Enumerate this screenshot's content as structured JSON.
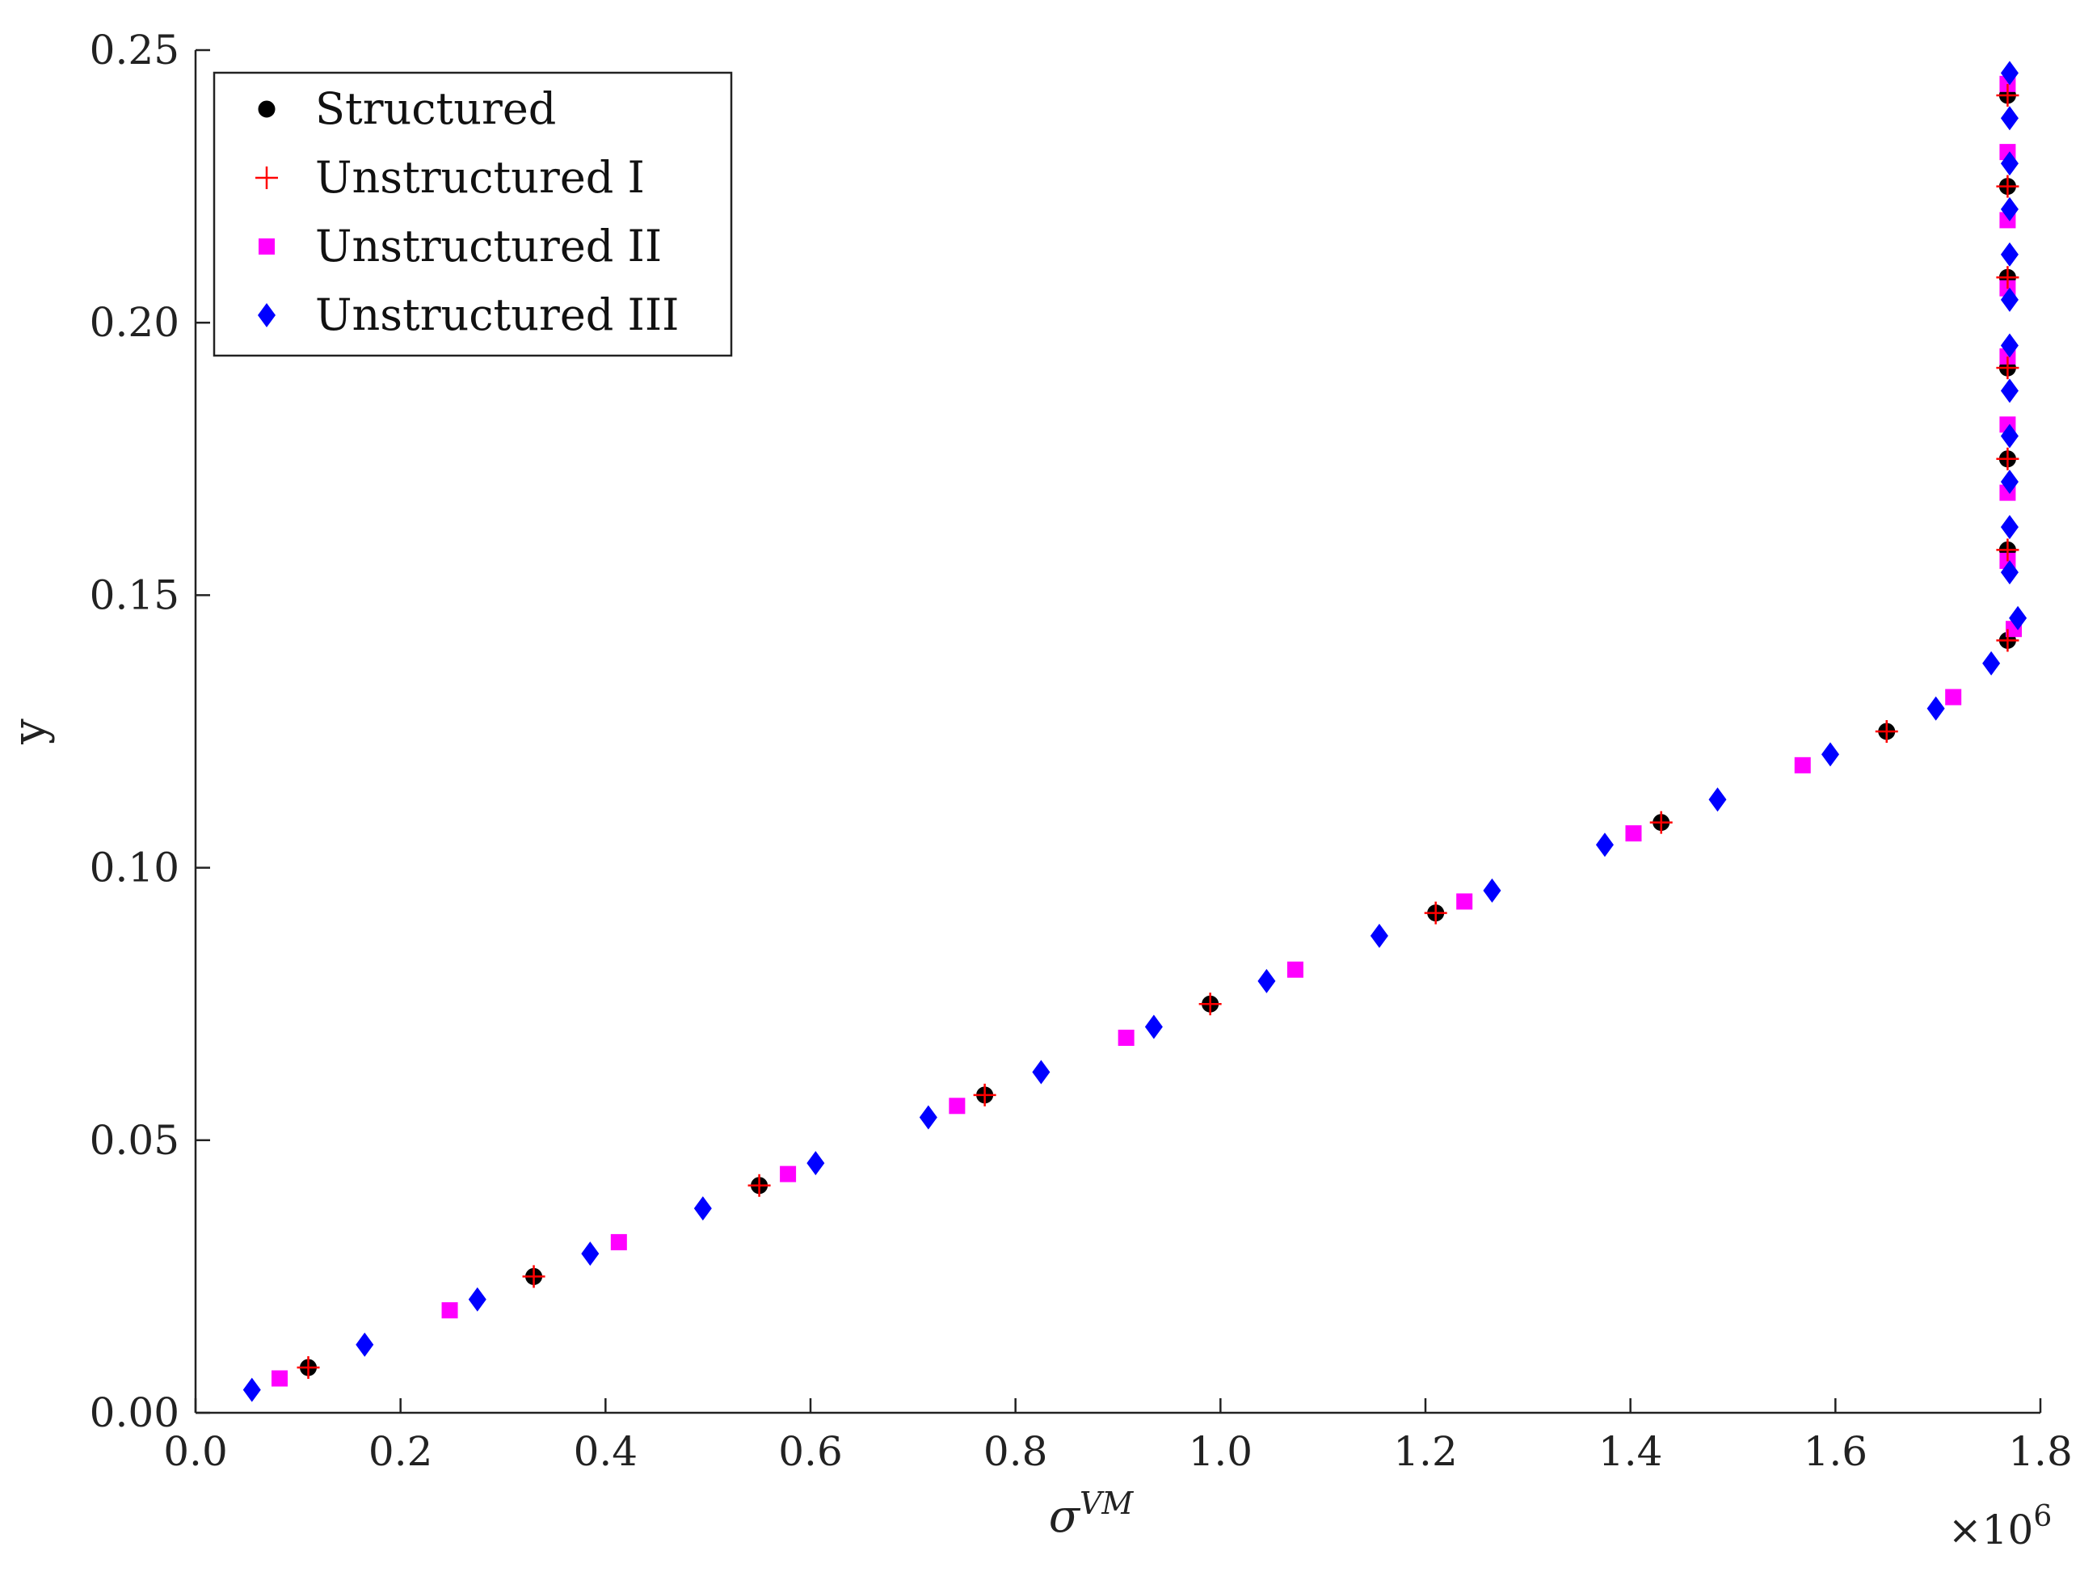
{
  "chart_data": {
    "type": "scatter",
    "xlabel": "σ",
    "xlabel_sup": "VM",
    "ylabel": "y",
    "x_multiplier_base": "×10",
    "x_multiplier_exp": "6",
    "xlim": [
      0.0,
      1.8
    ],
    "ylim": [
      0.0,
      0.25
    ],
    "xticks": [
      "0.0",
      "0.2",
      "0.4",
      "0.6",
      "0.8",
      "1.0",
      "1.2",
      "1.4",
      "1.6",
      "1.8"
    ],
    "yticks": [
      "0.00",
      "0.05",
      "0.10",
      "0.15",
      "0.20",
      "0.25"
    ],
    "grid": false,
    "legend_position": "top-left",
    "series": [
      {
        "name": "Structured",
        "marker": "circle",
        "color": "#000000",
        "points": [
          [
            0.11,
            0.0083
          ],
          [
            0.33,
            0.025
          ],
          [
            0.55,
            0.0417
          ],
          [
            0.77,
            0.0583
          ],
          [
            0.99,
            0.075
          ],
          [
            1.21,
            0.0917
          ],
          [
            1.43,
            0.1083
          ],
          [
            1.65,
            0.125
          ],
          [
            1.768,
            0.1417
          ],
          [
            1.768,
            0.1583
          ],
          [
            1.768,
            0.175
          ],
          [
            1.768,
            0.1917
          ],
          [
            1.768,
            0.2083
          ],
          [
            1.768,
            0.225
          ],
          [
            1.768,
            0.2417
          ]
        ]
      },
      {
        "name": "Unstructured I",
        "marker": "plus",
        "color": "#ff0000",
        "points": [
          [
            0.11,
            0.0083
          ],
          [
            0.33,
            0.025
          ],
          [
            0.55,
            0.0417
          ],
          [
            0.77,
            0.0583
          ],
          [
            0.99,
            0.075
          ],
          [
            1.21,
            0.0917
          ],
          [
            1.43,
            0.1083
          ],
          [
            1.65,
            0.125
          ],
          [
            1.768,
            0.1417
          ],
          [
            1.768,
            0.1583
          ],
          [
            1.768,
            0.175
          ],
          [
            1.768,
            0.1917
          ],
          [
            1.768,
            0.2083
          ],
          [
            1.768,
            0.225
          ],
          [
            1.768,
            0.2417
          ]
        ]
      },
      {
        "name": "Unstructured II",
        "marker": "square",
        "color": "#ff00ff",
        "points": [
          [
            0.082,
            0.0063
          ],
          [
            0.248,
            0.0188
          ],
          [
            0.413,
            0.0313
          ],
          [
            0.578,
            0.0438
          ],
          [
            0.743,
            0.0563
          ],
          [
            0.908,
            0.0688
          ],
          [
            1.073,
            0.0813
          ],
          [
            1.238,
            0.0938
          ],
          [
            1.403,
            0.1063
          ],
          [
            1.568,
            0.1188
          ],
          [
            1.715,
            0.1313
          ],
          [
            1.774,
            0.1438
          ],
          [
            1.768,
            0.1563
          ],
          [
            1.768,
            0.1688
          ],
          [
            1.768,
            0.1813
          ],
          [
            1.768,
            0.1938
          ],
          [
            1.768,
            0.2063
          ],
          [
            1.768,
            0.2188
          ],
          [
            1.768,
            0.2313
          ],
          [
            1.768,
            0.2438
          ]
        ]
      },
      {
        "name": "Unstructured III",
        "marker": "diamond",
        "color": "#0000ff",
        "points": [
          [
            0.055,
            0.0042
          ],
          [
            0.165,
            0.0125
          ],
          [
            0.275,
            0.0208
          ],
          [
            0.385,
            0.0292
          ],
          [
            0.495,
            0.0375
          ],
          [
            0.605,
            0.0458
          ],
          [
            0.715,
            0.0542
          ],
          [
            0.825,
            0.0625
          ],
          [
            0.935,
            0.0708
          ],
          [
            1.045,
            0.0792
          ],
          [
            1.155,
            0.0875
          ],
          [
            1.265,
            0.0958
          ],
          [
            1.375,
            0.1042
          ],
          [
            1.485,
            0.1125
          ],
          [
            1.595,
            0.1208
          ],
          [
            1.698,
            0.1292
          ],
          [
            1.752,
            0.1375
          ],
          [
            1.778,
            0.1458
          ],
          [
            1.77,
            0.1542
          ],
          [
            1.77,
            0.1625
          ],
          [
            1.77,
            0.1708
          ],
          [
            1.77,
            0.1792
          ],
          [
            1.77,
            0.1875
          ],
          [
            1.77,
            0.1958
          ],
          [
            1.77,
            0.2042
          ],
          [
            1.77,
            0.2125
          ],
          [
            1.77,
            0.2208
          ],
          [
            1.77,
            0.2292
          ],
          [
            1.77,
            0.2375
          ],
          [
            1.77,
            0.2458
          ]
        ]
      }
    ]
  }
}
